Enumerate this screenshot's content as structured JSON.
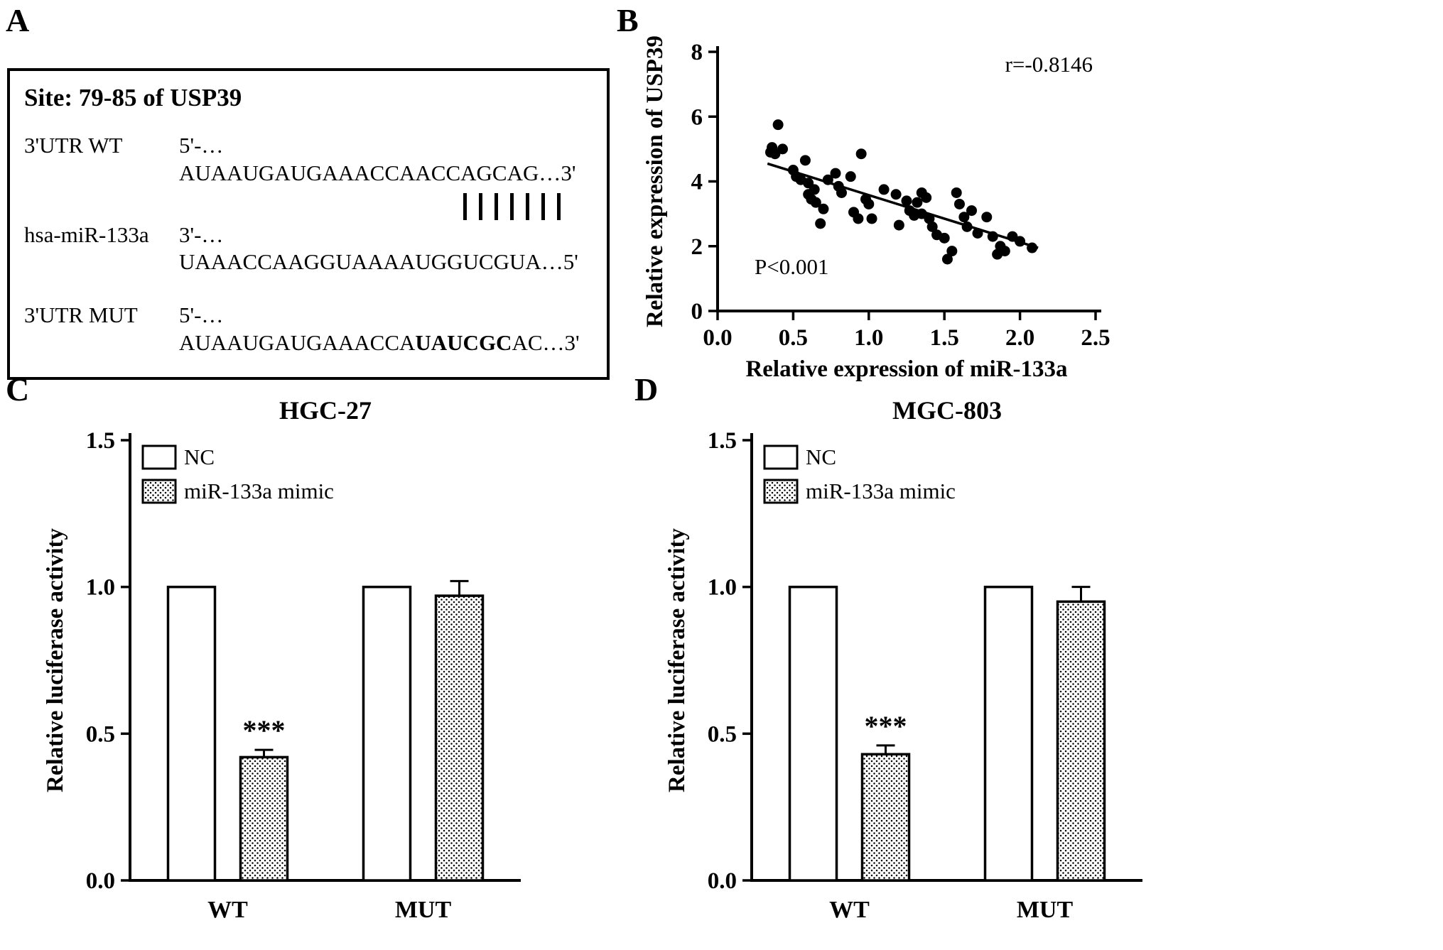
{
  "panels": {
    "a": {
      "label": "A",
      "box": {
        "title": "Site: 79-85 of USP39",
        "rows": [
          {
            "name": "3'UTR WT",
            "seq": "5'-…AUAAUGAUGAAACCAACCAGCAG…3'"
          },
          {
            "name": "hsa-miR-133a",
            "seq": "3'-…UAAACCAAGGUAAAAUGGUCGUA…5'"
          },
          {
            "name": "3'UTR MUT",
            "seq_prefix": "5'-…AUAAUGAUGAAACCA",
            "seq_bold": "UAUCGC",
            "seq_suffix": "AC…3'"
          }
        ],
        "alignment_bar_count": 7
      }
    },
    "b": {
      "label": "B"
    },
    "c": {
      "label": "C"
    },
    "d": {
      "label": "D"
    }
  },
  "chart_data": [
    {
      "id": "usp39-mir133a-correlation",
      "type": "scatter",
      "xlabel": "Relative expression of miR-133a",
      "ylabel": "Relative expression of USP39",
      "xlim": [
        0.0,
        2.5
      ],
      "ylim": [
        0,
        8
      ],
      "xticks": [
        0,
        0.5,
        1.0,
        1.5,
        2.0,
        2.5
      ],
      "xtick_labels": [
        "0.0",
        "0.5",
        "1.0",
        "1.5",
        "2.0",
        "2.5"
      ],
      "yticks": [
        0,
        2,
        4,
        6,
        8
      ],
      "ytick_labels": [
        "0",
        "2",
        "4",
        "6",
        "8"
      ],
      "grid": false,
      "annotations": [
        {
          "text": "r=-0.8146",
          "position": "top-right"
        },
        {
          "text": "P<0.001",
          "position": "bottom-left"
        }
      ],
      "trendline": {
        "x1": 0.33,
        "y1": 4.55,
        "x2": 2.12,
        "y2": 1.95
      },
      "points": [
        [
          0.35,
          4.9
        ],
        [
          0.36,
          5.05
        ],
        [
          0.38,
          4.85
        ],
        [
          0.4,
          5.75
        ],
        [
          0.43,
          5.0
        ],
        [
          0.5,
          4.35
        ],
        [
          0.52,
          4.15
        ],
        [
          0.55,
          4.05
        ],
        [
          0.58,
          4.65
        ],
        [
          0.6,
          3.95
        ],
        [
          0.6,
          3.6
        ],
        [
          0.62,
          3.45
        ],
        [
          0.64,
          3.75
        ],
        [
          0.65,
          3.35
        ],
        [
          0.68,
          2.7
        ],
        [
          0.7,
          3.15
        ],
        [
          0.73,
          4.05
        ],
        [
          0.78,
          4.25
        ],
        [
          0.8,
          3.85
        ],
        [
          0.82,
          3.65
        ],
        [
          0.88,
          4.15
        ],
        [
          0.9,
          3.05
        ],
        [
          0.93,
          2.85
        ],
        [
          0.95,
          4.85
        ],
        [
          0.98,
          3.45
        ],
        [
          1.0,
          3.3
        ],
        [
          1.02,
          2.85
        ],
        [
          1.1,
          3.75
        ],
        [
          1.18,
          3.6
        ],
        [
          1.2,
          2.65
        ],
        [
          1.25,
          3.4
        ],
        [
          1.27,
          3.1
        ],
        [
          1.3,
          2.95
        ],
        [
          1.32,
          3.35
        ],
        [
          1.35,
          3.65
        ],
        [
          1.35,
          3.0
        ],
        [
          1.38,
          3.5
        ],
        [
          1.4,
          2.85
        ],
        [
          1.42,
          2.6
        ],
        [
          1.45,
          2.35
        ],
        [
          1.5,
          2.25
        ],
        [
          1.52,
          1.6
        ],
        [
          1.55,
          1.85
        ],
        [
          1.58,
          3.65
        ],
        [
          1.6,
          3.3
        ],
        [
          1.63,
          2.9
        ],
        [
          1.65,
          2.6
        ],
        [
          1.68,
          3.1
        ],
        [
          1.72,
          2.4
        ],
        [
          1.78,
          2.9
        ],
        [
          1.82,
          2.3
        ],
        [
          1.85,
          1.75
        ],
        [
          1.87,
          2.0
        ],
        [
          1.9,
          1.85
        ],
        [
          1.95,
          2.3
        ],
        [
          2.0,
          2.15
        ],
        [
          2.08,
          1.95
        ]
      ]
    },
    {
      "id": "luciferase-hgc27",
      "type": "bar",
      "title": "HGC-27",
      "ylabel": "Relative luciferase activity",
      "ylim": [
        0,
        1.5
      ],
      "yticks": [
        0,
        0.5,
        1.0,
        1.5
      ],
      "ytick_labels": [
        "0.0",
        "0.5",
        "1.0",
        "1.5"
      ],
      "categories": [
        "WT",
        "MUT"
      ],
      "legend_position": "top-left",
      "series": [
        {
          "name": "NC",
          "fill": "white",
          "values": [
            1.0,
            1.0
          ],
          "errors": [
            0,
            0
          ]
        },
        {
          "name": "miR-133a mimic",
          "fill": "dots",
          "values": [
            0.42,
            0.97
          ],
          "errors": [
            0.025,
            0.05
          ]
        }
      ],
      "significance": [
        {
          "category": "WT",
          "series_index": 1,
          "text": "***"
        }
      ]
    },
    {
      "id": "luciferase-mgc803",
      "type": "bar",
      "title": "MGC-803",
      "ylabel": "Relative luciferase activity",
      "ylim": [
        0,
        1.5
      ],
      "yticks": [
        0,
        0.5,
        1.0,
        1.5
      ],
      "ytick_labels": [
        "0.0",
        "0.5",
        "1.0",
        "1.5"
      ],
      "categories": [
        "WT",
        "MUT"
      ],
      "legend_position": "top-left",
      "series": [
        {
          "name": "NC",
          "fill": "white",
          "values": [
            1.0,
            1.0
          ],
          "errors": [
            0,
            0
          ]
        },
        {
          "name": "miR-133a mimic",
          "fill": "dots",
          "values": [
            0.43,
            0.95
          ],
          "errors": [
            0.03,
            0.05
          ]
        }
      ],
      "significance": [
        {
          "category": "WT",
          "series_index": 1,
          "text": "***"
        }
      ]
    }
  ]
}
